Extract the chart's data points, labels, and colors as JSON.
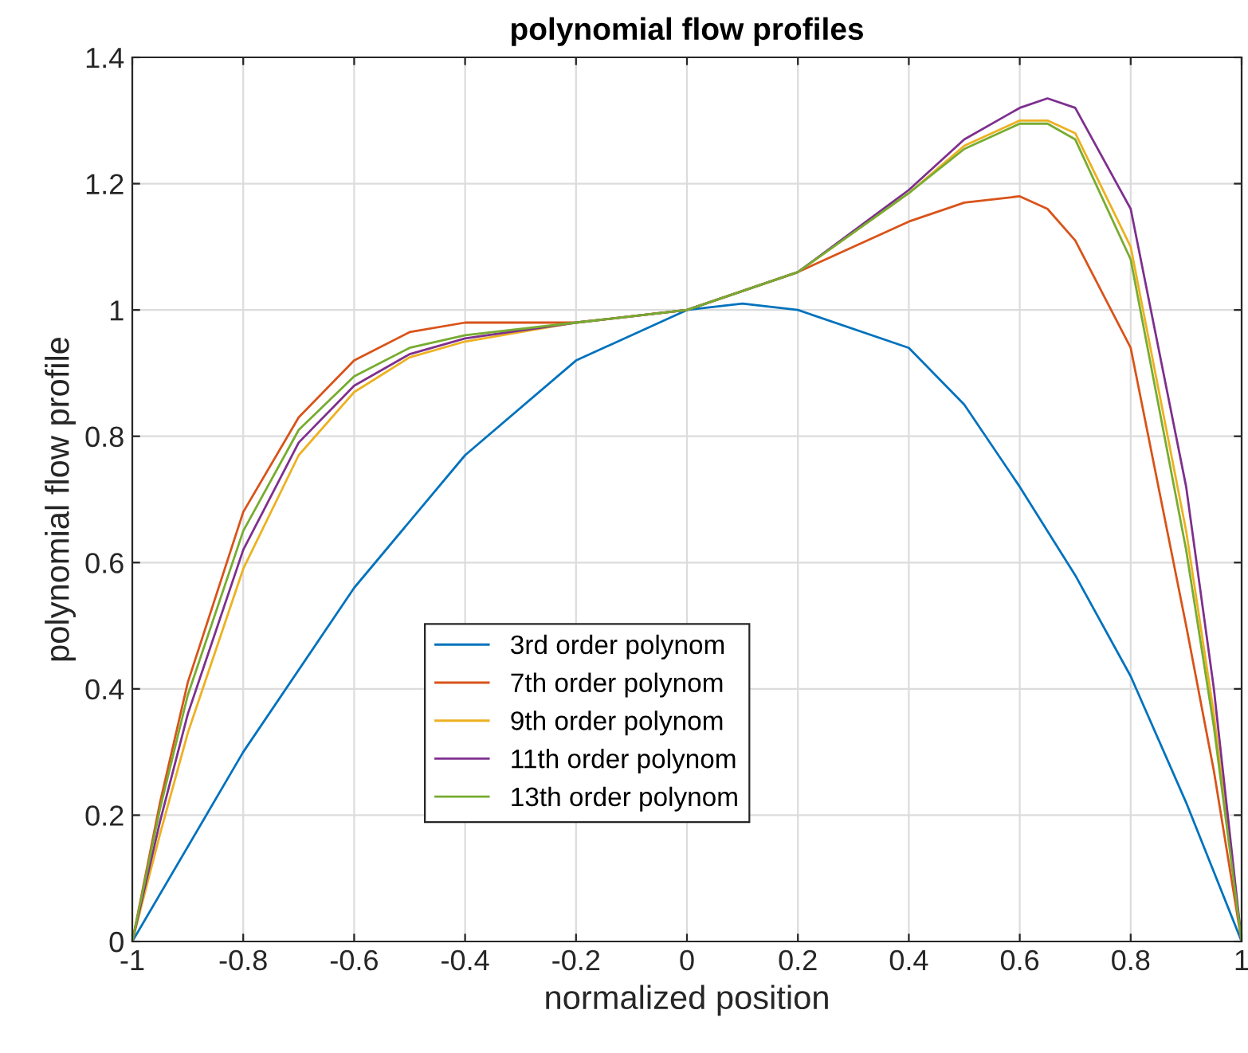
{
  "chart_data": {
    "type": "line",
    "title": "polynomial flow profiles",
    "xlabel": "normalized position",
    "ylabel": "polynomial flow profile",
    "x": [
      -1,
      -0.95,
      -0.9,
      -0.8,
      -0.7,
      -0.6,
      -0.5,
      -0.4,
      -0.2,
      0,
      0.2,
      0.4,
      0.5,
      0.6,
      0.65,
      0.7,
      0.8,
      0.9,
      0.95,
      1
    ],
    "series": [
      {
        "name": "3rd order polynom",
        "color": "#0072bd",
        "x": [
          -1,
          -0.8,
          -0.6,
          -0.4,
          -0.2,
          0,
          0.1,
          0.2,
          0.4,
          0.5,
          0.6,
          0.7,
          0.8,
          0.9,
          1
        ],
        "values": [
          0,
          0.3,
          0.56,
          0.77,
          0.92,
          1.0,
          1.01,
          1.0,
          0.94,
          0.85,
          0.72,
          0.58,
          0.42,
          0.22,
          0
        ]
      },
      {
        "name": "7th order polynom",
        "color": "#d95319",
        "values": [
          0,
          0.22,
          0.41,
          0.68,
          0.83,
          0.92,
          0.965,
          0.98,
          0.98,
          1.0,
          1.06,
          1.14,
          1.17,
          1.18,
          1.16,
          1.11,
          0.94,
          0.5,
          0.27,
          0
        ]
      },
      {
        "name": "9th order polynom",
        "color": "#edb120",
        "values": [
          0,
          0.17,
          0.33,
          0.59,
          0.77,
          0.87,
          0.925,
          0.95,
          0.98,
          1.0,
          1.06,
          1.185,
          1.26,
          1.3,
          1.3,
          1.28,
          1.1,
          0.65,
          0.36,
          0
        ]
      },
      {
        "name": "11th order polynom",
        "color": "#7e2f8e",
        "values": [
          0,
          0.19,
          0.36,
          0.62,
          0.79,
          0.88,
          0.93,
          0.955,
          0.98,
          1.0,
          1.06,
          1.19,
          1.27,
          1.32,
          1.335,
          1.32,
          1.16,
          0.72,
          0.4,
          0
        ]
      },
      {
        "name": "13th order polynom",
        "color": "#77ac30",
        "values": [
          0,
          0.21,
          0.39,
          0.65,
          0.81,
          0.895,
          0.94,
          0.96,
          0.98,
          1.0,
          1.06,
          1.185,
          1.255,
          1.295,
          1.295,
          1.27,
          1.08,
          0.62,
          0.34,
          0
        ]
      }
    ],
    "xlim": [
      -1,
      1
    ],
    "xticks": [
      -1,
      -0.8,
      -0.6,
      -0.4,
      -0.2,
      0,
      0.2,
      0.4,
      0.6,
      0.8,
      1
    ],
    "ylim": [
      0,
      1.4
    ],
    "yticks": [
      0,
      0.2,
      0.4,
      0.6,
      0.8,
      1,
      1.2,
      1.4
    ],
    "grid": true,
    "legend": "bottom",
    "line_style": "solid",
    "marker": "none"
  }
}
